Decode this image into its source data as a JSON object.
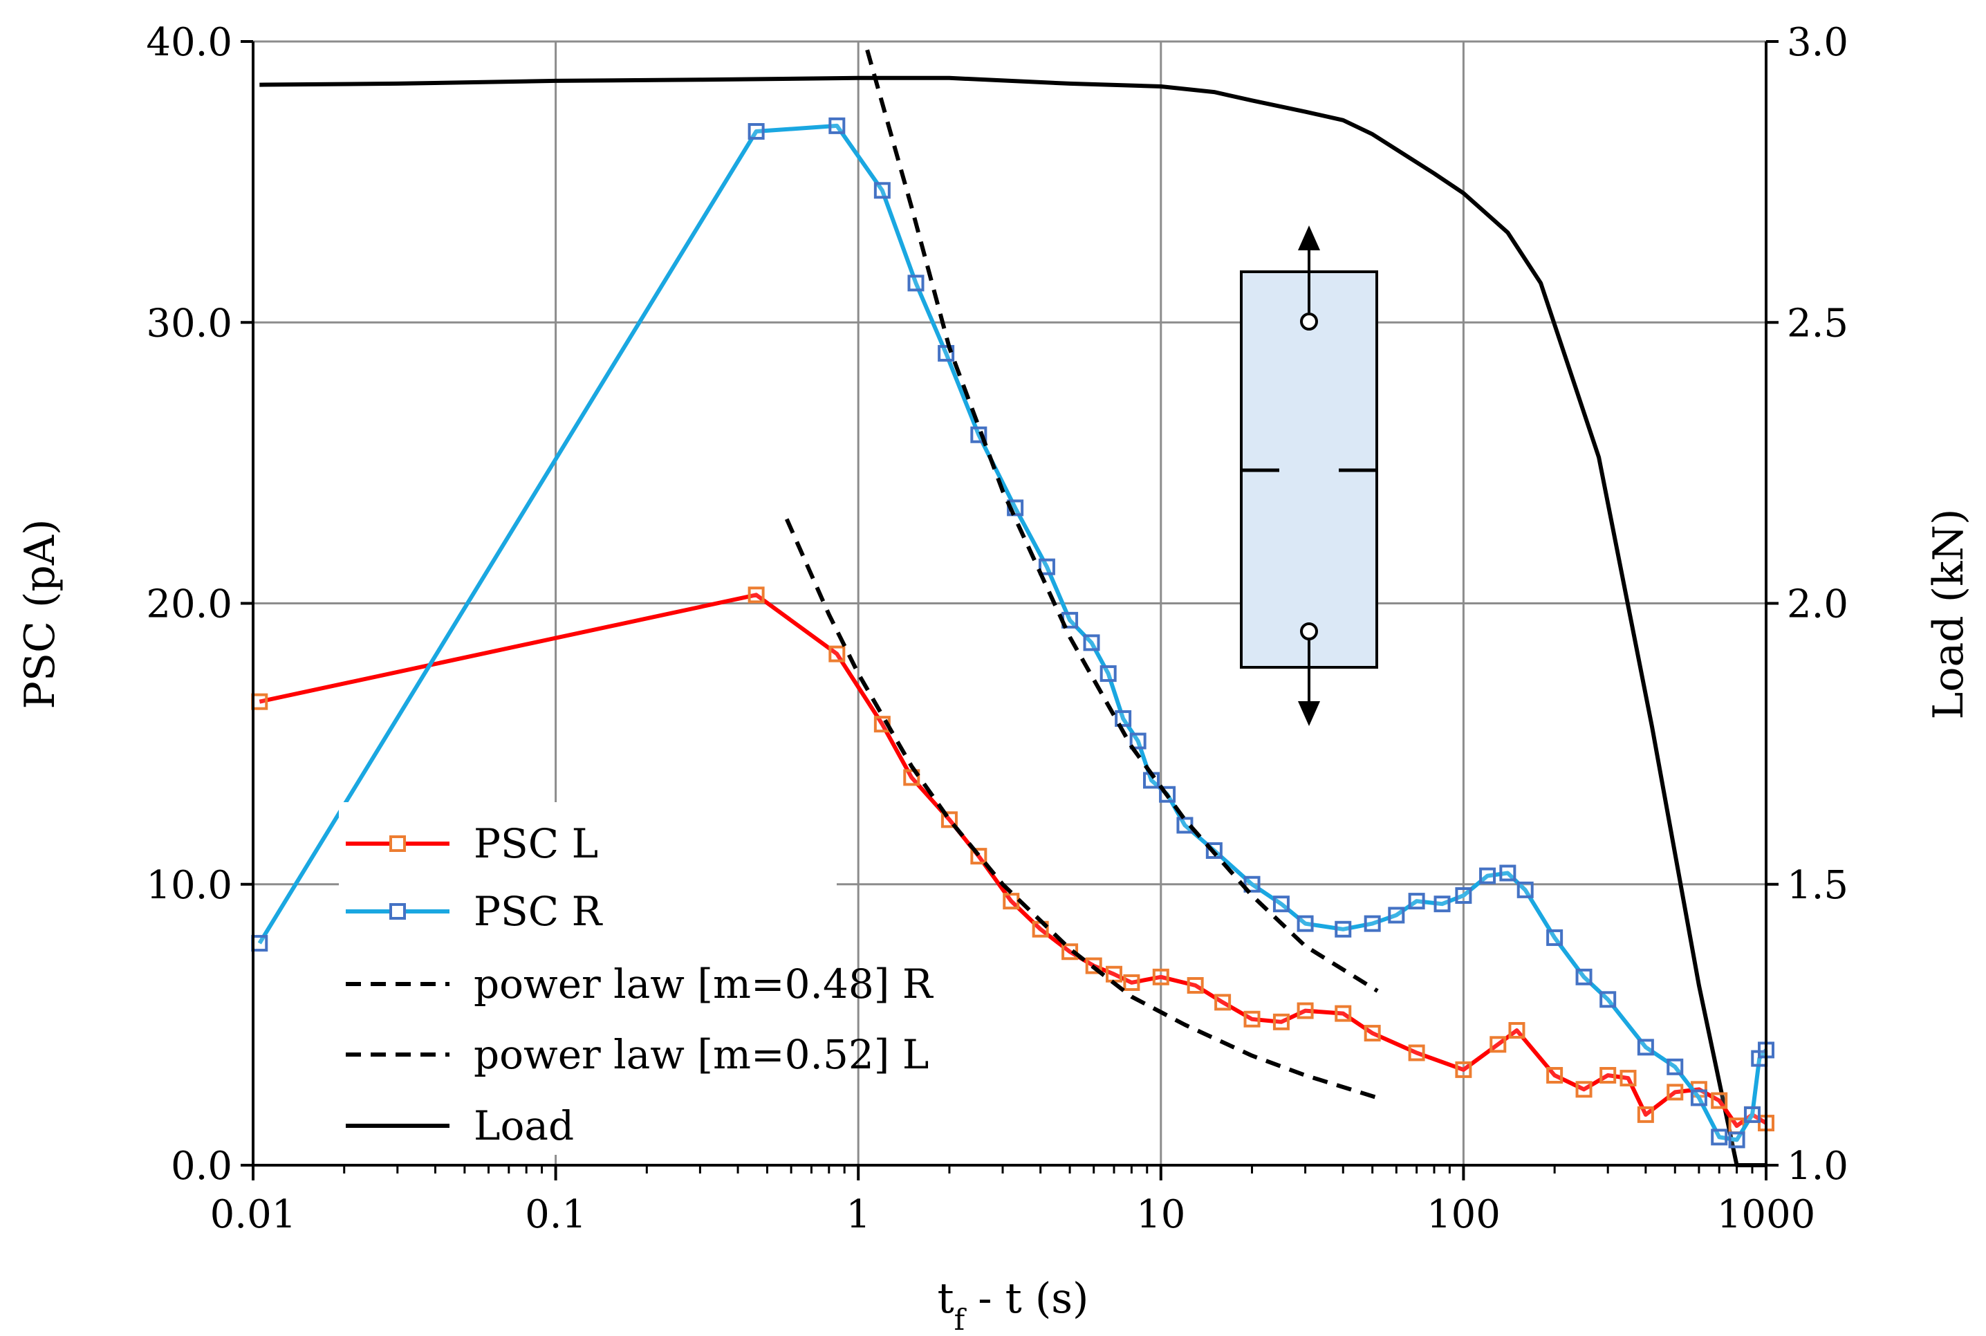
{
  "chart_data": {
    "type": "line",
    "title": "",
    "xlabel": "t_f - t (s)",
    "xlabel_main": "t",
    "xlabel_sub": "f",
    "xlabel_rest": " - t (s)",
    "ylabel": "PSC (pA)",
    "y2label": "Load (kN)",
    "xscale": "log",
    "xlim": [
      0.01,
      1000
    ],
    "ylim": [
      0,
      40
    ],
    "y2lim": [
      1.0,
      3.0
    ],
    "grid": true,
    "legend_position": "lower-left",
    "x_ticks": [
      "0.01",
      "0.1",
      "1",
      "10",
      "100",
      "1000"
    ],
    "y_ticks": [
      "0.0",
      "10.0",
      "20.0",
      "30.0",
      "40.0"
    ],
    "y2_ticks": [
      "1.0",
      "1.5",
      "2.0",
      "2.5",
      "3.0"
    ],
    "inset": "specimen-diagram-with-tension-arrows",
    "series": [
      {
        "name": "PSC L",
        "axis": "left",
        "color": "#ff0000",
        "marker_color": "#ed7d31",
        "marker": "square",
        "x": [
          0.0105,
          0.46,
          0.85,
          1.2,
          1.5,
          2.0,
          2.5,
          3.2,
          4.0,
          5.0,
          6.0,
          7.0,
          8.0,
          10.0,
          13.0,
          16.0,
          20.0,
          25.0,
          30.0,
          40.0,
          50.0,
          70.0,
          100.0,
          130.0,
          150.0,
          200.0,
          250.0,
          300.0,
          350.0,
          400.0,
          500.0,
          600.0,
          700.0,
          800.0,
          900.0,
          1000.0
        ],
        "y": [
          16.5,
          20.3,
          18.2,
          15.7,
          13.8,
          12.3,
          11.0,
          9.4,
          8.4,
          7.6,
          7.1,
          6.8,
          6.5,
          6.7,
          6.4,
          5.8,
          5.2,
          5.1,
          5.5,
          5.4,
          4.7,
          4.0,
          3.4,
          4.3,
          4.8,
          3.2,
          2.7,
          3.2,
          3.1,
          1.8,
          2.6,
          2.7,
          2.3,
          1.4,
          1.8,
          1.5
        ]
      },
      {
        "name": "PSC R",
        "axis": "left",
        "color": "#1aa7e1",
        "marker_color": "#4472c4",
        "marker": "square",
        "x": [
          0.0105,
          0.46,
          0.85,
          1.2,
          1.55,
          1.95,
          2.5,
          3.3,
          4.2,
          5.0,
          5.9,
          6.7,
          7.5,
          8.4,
          9.3,
          10.5,
          12.0,
          15.0,
          20.0,
          25.0,
          30.0,
          40.0,
          50.0,
          60.0,
          70.0,
          85.0,
          100.0,
          120.0,
          140.0,
          160.0,
          200.0,
          250.0,
          300.0,
          400.0,
          500.0,
          600.0,
          700.0,
          800.0,
          900.0,
          950.0,
          1000.0
        ],
        "y": [
          7.9,
          36.8,
          37.0,
          34.7,
          31.4,
          28.9,
          26.0,
          23.4,
          21.3,
          19.4,
          18.6,
          17.5,
          15.9,
          15.1,
          13.7,
          13.2,
          12.1,
          11.2,
          10.0,
          9.3,
          8.6,
          8.4,
          8.6,
          8.9,
          9.4,
          9.3,
          9.6,
          10.3,
          10.4,
          9.8,
          8.1,
          6.7,
          5.9,
          4.2,
          3.5,
          2.4,
          1.0,
          0.9,
          1.8,
          3.8,
          4.1
        ]
      },
      {
        "name": "power law [m=0.48] R",
        "axis": "left",
        "color": "#000000",
        "line_style": "dashed",
        "x": [
          1.07,
          1.5,
          2.0,
          3.0,
          5.0,
          8.0,
          12.0,
          20.0,
          30.0,
          52.0
        ],
        "y": [
          39.7,
          34.1,
          29.1,
          24.0,
          18.8,
          14.9,
          12.3,
          9.6,
          7.8,
          6.2
        ]
      },
      {
        "name": "power law [m=0.52] L",
        "axis": "left",
        "color": "#000000",
        "line_style": "dashed",
        "x": [
          0.58,
          0.8,
          1.0,
          1.5,
          2.0,
          3.0,
          5.0,
          8.0,
          12.0,
          20.0,
          30.0,
          52.0
        ],
        "y": [
          23.0,
          19.6,
          17.5,
          14.2,
          12.3,
          10.0,
          7.7,
          6.0,
          5.0,
          3.9,
          3.2,
          2.4
        ]
      },
      {
        "name": "Load",
        "axis": "right",
        "color": "#000000",
        "line_style": "solid",
        "x": [
          0.0105,
          0.03,
          0.1,
          0.3,
          1.0,
          2.0,
          5.0,
          10.0,
          15.0,
          20.0,
          30.0,
          40.0,
          50.0,
          80.0,
          100.0,
          140.0,
          180.0,
          280.0,
          420.0,
          600.0,
          800.0,
          1000.0
        ],
        "y": [
          2.923,
          2.925,
          2.93,
          2.932,
          2.935,
          2.935,
          2.925,
          2.92,
          2.91,
          2.895,
          2.875,
          2.86,
          2.835,
          2.765,
          2.73,
          2.66,
          2.57,
          2.26,
          1.78,
          1.32,
          1.0,
          1.0
        ]
      }
    ]
  }
}
